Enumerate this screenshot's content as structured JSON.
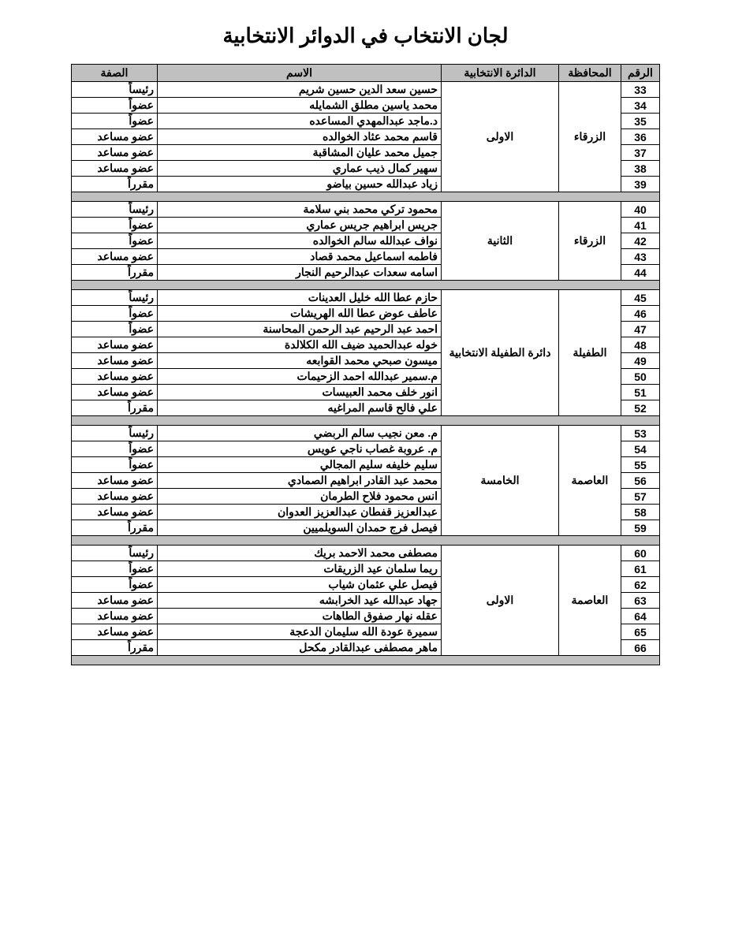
{
  "title": "لجان الانتخاب في الدوائر الانتخابية",
  "columns": {
    "num": "الرقم",
    "gov": "المحافظة",
    "dist": "الدائرة الانتخابية",
    "name": "الاسم",
    "role": "الصفة"
  },
  "groups": [
    {
      "gov": "الزرقاء",
      "dist": "الاولى",
      "rows": [
        {
          "num": "33",
          "name": "حسين سعد الدين حسين شريم",
          "role": "رئيساً"
        },
        {
          "num": "34",
          "name": "محمد ياسين مطلق الشمايله",
          "role": "عضواً"
        },
        {
          "num": "35",
          "name": "د.ماجد عبدالمهدي المساعده",
          "role": "عضواً"
        },
        {
          "num": "36",
          "name": "قاسم محمد عثاد الخوالده",
          "role": "عضو مساعد"
        },
        {
          "num": "37",
          "name": "جميل محمد عليان المشاقبة",
          "role": "عضو مساعد"
        },
        {
          "num": "38",
          "name": "سهير كمال ذيب عماري",
          "role": "عضو مساعد"
        },
        {
          "num": "39",
          "name": "زياد عبدالله حسين بياضو",
          "role": "مقرراً"
        }
      ]
    },
    {
      "gov": "الزرقاء",
      "dist": "الثانية",
      "rows": [
        {
          "num": "40",
          "name": "محمود تركي محمد بني سلامة",
          "role": "رئيساً"
        },
        {
          "num": "41",
          "name": "جريس ابراهيم جريس عماري",
          "role": "عضواً"
        },
        {
          "num": "42",
          "name": "نواف عبدالله سالم الخوالده",
          "role": "عضواً"
        },
        {
          "num": "43",
          "name": "فاطمه اسماعيل محمد قصاد",
          "role": "عضو  مساعد"
        },
        {
          "num": "44",
          "name": "اسامه سعدات عبدالرحيم النجار",
          "role": "مقرراً"
        }
      ]
    },
    {
      "gov": "الطفيلة",
      "dist": "دائرة الطفيلة الانتخابية",
      "rows": [
        {
          "num": "45",
          "name": "حازم عطا الله خليل العدينات",
          "role": "رئيساً"
        },
        {
          "num": "46",
          "name": "عاطف عوض عطا الله الهريشات",
          "role": "عضواً"
        },
        {
          "num": "47",
          "name": "احمد عبد الرحيم عبد الرحمن المحاسنة",
          "role": "عضواً"
        },
        {
          "num": "48",
          "name": "خوله عبدالحميد ضيف الله الكلالدة",
          "role": "عضو مساعد"
        },
        {
          "num": "49",
          "name": "ميسون صبحي محمد القوابعه",
          "role": "عضو مساعد"
        },
        {
          "num": "50",
          "name": "م.سمير عبدالله احمد الزحيمات",
          "role": "عضو مساعد"
        },
        {
          "num": "51",
          "name": "انور خلف محمد العبيسات",
          "role": "عضو مساعد"
        },
        {
          "num": "52",
          "name": "علي فالح قاسم المراغيه",
          "role": "مقرراً"
        }
      ]
    },
    {
      "gov": "العاصمة",
      "dist": "الخامسة",
      "rows": [
        {
          "num": "53",
          "name": "م. معن نجيب سالم الربضي",
          "role": "رئيساً"
        },
        {
          "num": "54",
          "name": "م. عروبة غصاب ناجي عويس",
          "role": "عضواً"
        },
        {
          "num": "55",
          "name": "سليم خليفه سليم المجالي",
          "role": "عضواً"
        },
        {
          "num": "56",
          "name": "محمد عبد القادر ابراهيم الصمادي",
          "role": "عضو  مساعد"
        },
        {
          "num": "57",
          "name": "انس محمود فلاح الطرمان",
          "role": "عضو  مساعد"
        },
        {
          "num": "58",
          "name": "عبدالعزيز قفطان عبدالعزيز العدوان",
          "role": "عضو مساعد"
        },
        {
          "num": "59",
          "name": "فيصل فرج حمدان السويلميين",
          "role": "مقرراً"
        }
      ]
    },
    {
      "gov": "العاصمة",
      "dist": "الاولى",
      "rows": [
        {
          "num": "60",
          "name": "مصطفى محمد الاحمد بريك",
          "role": "رئيساً"
        },
        {
          "num": "61",
          "name": "ريما سلمان عيد الزريقات",
          "role": "عضواً"
        },
        {
          "num": "62",
          "name": "فيصل علي عثمان شياب",
          "role": "عضواً"
        },
        {
          "num": "63",
          "name": "جهاد عبدالله عيد الخرابشه",
          "role": "عضو  مساعد"
        },
        {
          "num": "64",
          "name": "عقله نهار صفوق الطاهات",
          "role": "عضو  مساعد"
        },
        {
          "num": "65",
          "name": "سميرة عودة الله سليمان الدعجة",
          "role": "عضو  مساعد"
        },
        {
          "num": "66",
          "name": "ماهر مصطفى عبدالقادر مكحل",
          "role": "مقرراً"
        }
      ]
    }
  ]
}
